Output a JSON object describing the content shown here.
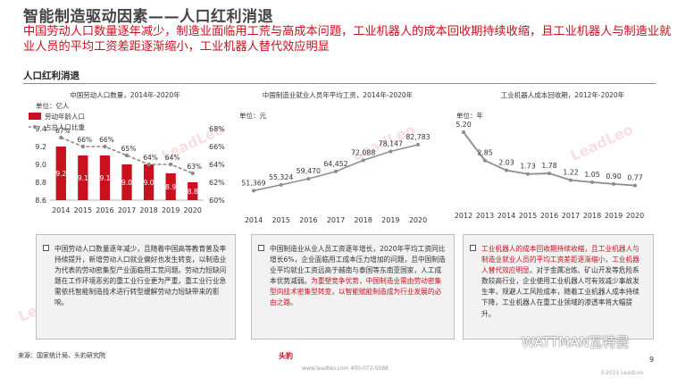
{
  "header": {
    "title": "智能制造驱动因素——人口红利消退",
    "subtitle": "中国劳动人口数量逐年减少，制造业面临用工荒与高成本问题，工业机器人的成本回收期持续收缩，且工业机器人与制造业就业人员的平均工资差距逐渐缩小，工业机器人替代效应明显"
  },
  "section": {
    "label": "人口红利消退"
  },
  "colors": {
    "accent": "#c8101e",
    "bar": "#c8101e",
    "line": "#8c8c8c"
  },
  "chart_data": [
    {
      "type": "bar",
      "title": "中国劳动人口数量，2014年-2020年",
      "unit": "单位：亿人",
      "categories": [
        "2014",
        "2015",
        "2016",
        "2017",
        "2018",
        "2019",
        "2020"
      ],
      "series": [
        {
          "name": "劳动年龄人口",
          "type": "bar",
          "axis": "left",
          "values": [
            9.2,
            9.1,
            9.1,
            9.0,
            9.0,
            8.9,
            8.8
          ]
        },
        {
          "name": "占总人口比重",
          "type": "line",
          "axis": "right",
          "values": [
            67,
            66,
            66,
            65,
            64,
            64,
            63
          ],
          "labels": [
            "67%",
            "66%",
            "66%",
            "65%",
            "64%",
            "64%",
            "63%"
          ]
        }
      ],
      "y_ticks": [
        "8.6",
        "8.8",
        "9.0",
        "9.2",
        "9.4"
      ],
      "y2_ticks": [
        "60%",
        "62%",
        "64%",
        "66%",
        "68%"
      ],
      "ylim": [
        8.6,
        9.4
      ],
      "y2lim": [
        60,
        68
      ],
      "legend": "top-left"
    },
    {
      "type": "line",
      "title": "中国制造业就业人员年平均工资，2014年-2020年",
      "unit": "单位：元",
      "categories": [
        "2014",
        "2015",
        "2016",
        "2017",
        "2018",
        "2019",
        "2020"
      ],
      "values": [
        51369,
        55324,
        59470,
        64452,
        72088,
        78147,
        82783
      ],
      "labels": [
        "51,369",
        "55,324",
        "59,470",
        "64,452",
        "72,088",
        "78,147",
        "82,783"
      ],
      "ylim": [
        40000,
        90000
      ]
    },
    {
      "type": "line",
      "title": "工业机器人成本回收期，2012年-2020年",
      "unit": "单位：年",
      "categories": [
        "2012",
        "2013",
        "2014",
        "2015",
        "2016",
        "2017",
        "2018",
        "2019",
        "2020"
      ],
      "values": [
        5.2,
        2.85,
        2.03,
        1.73,
        1.78,
        1.22,
        1.05,
        0.9,
        0.77
      ],
      "labels": [
        "5.20",
        "2.85",
        "2.03",
        "1.73",
        "1.78",
        "1.22",
        "1.05",
        "0.90",
        "0.77"
      ],
      "ylim": [
        0,
        5.5
      ]
    }
  ],
  "boxes": [
    {
      "text": "中国劳动人口数量逐年减少，且随着中国高等教育普及率持续提升，新增劳动人口就业偏好也发生转变，以制造业为代表的劳动密集型产业面临用工荒问题。劳动力短缺问题在工作环境恶劣的重工业行业更为严重，重工业行业急需依托智能制造技术进行转型缓解劳动力短缺带来的影响。"
    },
    {
      "text_plain": "中国制造业从业人员工资逐年增长，2020年平均工资同比增长6%，企业面临用工成本压力增加的问题，且中国制造业平均就业工资远高于越南与泰国等东南亚国家，人工成本优势减弱。",
      "text_red": "为重塑竞争优势，中国制造业需由劳动密集型向技术密集型转变，以智能赋能制造成为行业发展的必由之路。"
    },
    {
      "text_red": "工业机器人的成本回收期持续收缩，且工业机器人与制造业就业人员的平均工资差距逐渐缩小，工业机器人替代效应明显。",
      "text_plain": "对于金属冶炼、矿山开发等危险系数较高行业，企业使用工业机器人可有效减少事故发生率，规避人工风险成本，随着工业机器人成本持续下降，工业机器人在重工业领域的渗透率将大幅提升。"
    }
  ],
  "footer": {
    "source": "来源：国家统计局、头豹研究院",
    "logo": "头豹",
    "url": "www.leadleo.com  400-072-5588",
    "page": "9",
    "copyright": "©2021 LeadLeo",
    "watermark": "WATTMAN瓦特曼"
  }
}
